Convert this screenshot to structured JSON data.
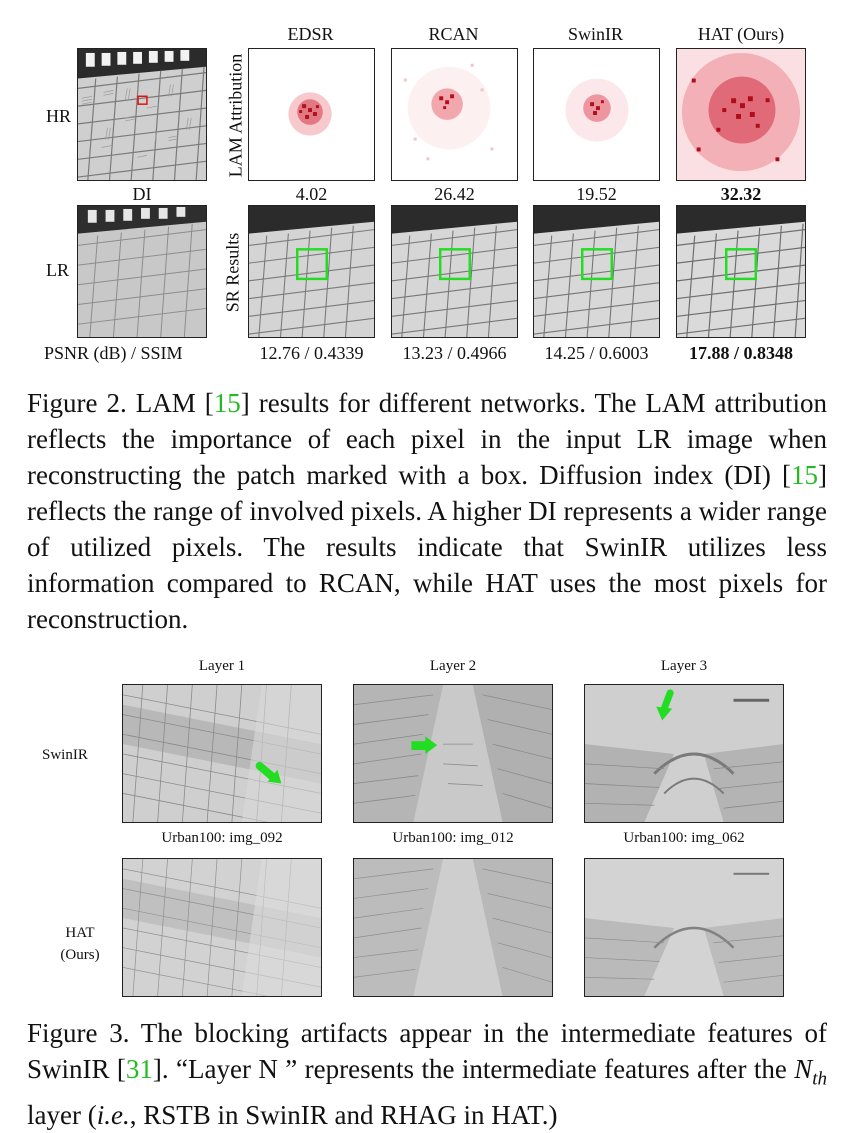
{
  "figure2": {
    "columns": [
      "EDSR",
      "RCAN",
      "SwinIR",
      "HAT (Ours)"
    ],
    "row_labels": {
      "hr": "HR",
      "lr": "LR"
    },
    "vertical_labels": {
      "attribution": "LAM Attribution",
      "sr": "SR Results"
    },
    "di_label": "DI",
    "di_values": [
      "4.02",
      "26.42",
      "19.52",
      "32.32"
    ],
    "metric_label": "PSNR (dB) / SSIM",
    "metrics": [
      "12.76 / 0.4339",
      "13.23 / 0.4966",
      "14.25 / 0.6003",
      "17.88 / 0.8348"
    ],
    "caption": {
      "prefix": "Figure 2.  LAM [",
      "ref1": "15",
      "mid1": "] results for different networks.  The LAM attribution reflects the importance of each pixel in the input LR image when reconstructing the patch marked with a box. Diffusion index (DI) [",
      "ref2": "15",
      "rest": "] reflects the range of involved pixels.  A higher DI represents a wider range of utilized pixels.  The results indicate that SwinIR utilizes less information compared to RCAN, while HAT uses the most pixels for reconstruction."
    }
  },
  "figure3": {
    "layers": [
      "Layer 1",
      "Layer 2",
      "Layer 3"
    ],
    "row_labels": {
      "swinir": "SwinIR",
      "hat_line1": "HAT",
      "hat_line2": "(Ours)"
    },
    "image_names": [
      "Urban100: img_092",
      "Urban100: img_012",
      "Urban100: img_062"
    ],
    "caption": {
      "prefix": "Figure 3. The blocking artifacts appear in the intermediate features of SwinIR [",
      "ref": "31",
      "mid": "]. “Layer N ” represents the intermediate features after the ",
      "math_n": "N",
      "math_sub": "th",
      "mid2": " layer (",
      "ie": "i.e.",
      "rest": ", RSTB in SwinIR and RHAG in HAT.)"
    }
  },
  "colors": {
    "cite_green": "#22bb22",
    "heat_red": "#d0101a",
    "box_green": "#22dd22"
  }
}
